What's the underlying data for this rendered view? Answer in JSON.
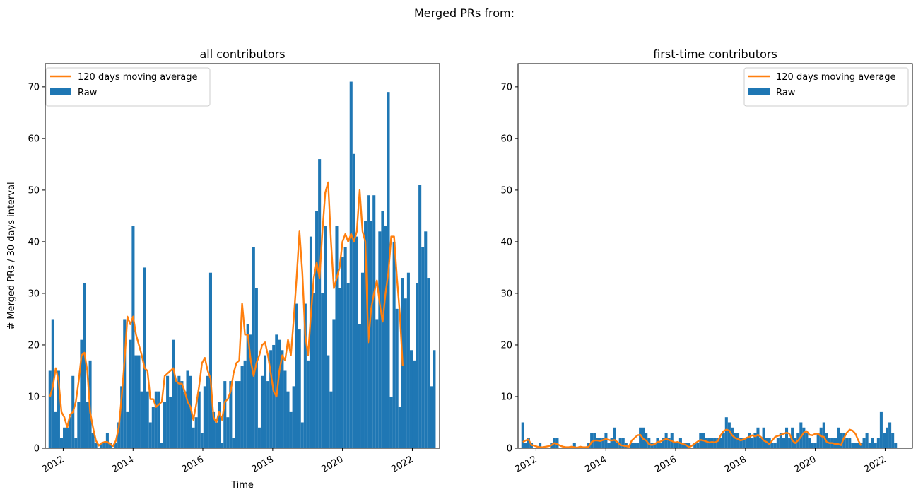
{
  "figure": {
    "suptitle": "Merged PRs from:"
  },
  "colors": {
    "bars": "#1f77b4",
    "line": "#ff7f0e"
  },
  "chart_data": [
    {
      "type": "bar",
      "title": "all contributors",
      "xlabel": "Time",
      "ylabel": "# Merged PRs / 30 days interval",
      "ylim": [
        0,
        74.5
      ],
      "yticks": [
        0,
        10,
        20,
        30,
        40,
        50,
        60,
        70
      ],
      "xticks": [
        "2012",
        "2014",
        "2016",
        "2018",
        "2020",
        "2022"
      ],
      "xlim": [
        "2011-06-27",
        "2022-10-13"
      ],
      "bin_days": 30,
      "x_start": "2011-08-01",
      "legend": {
        "position": "upper left",
        "entries": [
          "120 days moving average",
          "Raw"
        ]
      },
      "series": [
        {
          "name": "Raw",
          "kind": "bar",
          "values": [
            15,
            25,
            7,
            15,
            2,
            4,
            4,
            6,
            14,
            2,
            9,
            21,
            32,
            9,
            17,
            3,
            1,
            0,
            1,
            1,
            3,
            1,
            0,
            1,
            5,
            12,
            25,
            7,
            21,
            43,
            18,
            18,
            11,
            35,
            11,
            5,
            8,
            11,
            11,
            1,
            9,
            14,
            10,
            21,
            13,
            14,
            13,
            11,
            15,
            14,
            4,
            6,
            11,
            3,
            12,
            14,
            34,
            7,
            5,
            9,
            1,
            13,
            6,
            13,
            2,
            13,
            13,
            16,
            17,
            24,
            22,
            39,
            31,
            4,
            14,
            18,
            13,
            19,
            20,
            22,
            21,
            19,
            15,
            11,
            7,
            12,
            28,
            23,
            5,
            28,
            17,
            41,
            30,
            46,
            56,
            30,
            43,
            18,
            11,
            25,
            43,
            31,
            37,
            39,
            32,
            71,
            57,
            41,
            24,
            34,
            44,
            49,
            44,
            49,
            25,
            42,
            46,
            43,
            69,
            10,
            40,
            27,
            8,
            33,
            29,
            34,
            19,
            17,
            32,
            51,
            39,
            42,
            33,
            12,
            19
          ]
        },
        {
          "name": "120 days moving average",
          "kind": "line",
          "values": [
            10,
            12,
            15.5,
            13,
            7,
            6,
            4,
            6.5,
            7,
            9,
            13,
            18,
            18.5,
            15,
            7,
            4,
            1.5,
            0.5,
            1,
            1.2,
            1.2,
            0.8,
            0.4,
            1.5,
            4,
            10,
            17,
            25.5,
            24,
            25.5,
            22,
            20,
            18,
            15.5,
            15,
            9.5,
            9.5,
            8,
            8.5,
            9,
            14,
            14.5,
            15,
            15.5,
            13,
            12.5,
            12.5,
            11,
            9,
            8,
            5.5,
            8.5,
            12,
            16.5,
            17.5,
            15,
            13.5,
            6,
            5,
            7,
            5.5,
            9,
            9.5,
            11,
            14.5,
            16.5,
            17,
            28,
            22,
            22,
            17,
            14,
            16.5,
            18,
            20,
            20.5,
            18,
            14.5,
            11,
            10,
            15,
            18,
            17,
            21,
            18,
            25,
            33,
            42,
            34,
            22,
            18,
            26,
            33,
            36,
            33,
            42,
            49.5,
            51.5,
            40,
            31,
            33,
            35,
            40,
            41.5,
            40,
            41.5,
            40,
            42,
            50,
            42,
            40,
            20.5,
            27,
            30,
            32.5,
            28,
            24.5,
            30,
            34,
            41,
            41,
            33,
            26,
            16
          ]
        }
      ]
    },
    {
      "type": "bar",
      "title": "first-time contributors",
      "xlabel": "",
      "ylabel": "",
      "ylim": [
        0,
        74.5
      ],
      "yticks": [
        0,
        10,
        20,
        30,
        40,
        50,
        60,
        70
      ],
      "xticks": [
        "2012",
        "2014",
        "2016",
        "2018",
        "2020",
        "2022"
      ],
      "xlim": [
        "2011-06-27",
        "2022-10-13"
      ],
      "bin_days": 30,
      "x_start": "2011-08-01",
      "legend": {
        "position": "upper right",
        "entries": [
          "120 days moving average",
          "Raw"
        ]
      },
      "series": [
        {
          "name": "Raw",
          "kind": "bar",
          "values": [
            5,
            1,
            2,
            1,
            0,
            0,
            1,
            0,
            0,
            0,
            1,
            2,
            2,
            0,
            0,
            0,
            0,
            0,
            1,
            0,
            0,
            0,
            0,
            1,
            3,
            3,
            2,
            2,
            2,
            3,
            1,
            2,
            4,
            1,
            2,
            2,
            1,
            0,
            1,
            1,
            1,
            4,
            4,
            3,
            2,
            1,
            1,
            2,
            1,
            2,
            3,
            2,
            3,
            1,
            1,
            2,
            1,
            1,
            1,
            0,
            1,
            1,
            3,
            3,
            2,
            2,
            2,
            2,
            2,
            2,
            3,
            6,
            5,
            4,
            3,
            3,
            2,
            2,
            2,
            3,
            2,
            3,
            4,
            2,
            4,
            2,
            2,
            1,
            1,
            2,
            3,
            2,
            4,
            2,
            4,
            2,
            3,
            5,
            4,
            3,
            2,
            1,
            1,
            3,
            4,
            5,
            3,
            2,
            2,
            2,
            4,
            3,
            3,
            2,
            2,
            1,
            1,
            1,
            1,
            2,
            3,
            1,
            2,
            1,
            2,
            7,
            3,
            4,
            5,
            3,
            1,
            0,
            0,
            0,
            0
          ]
        },
        {
          "name": "120 days moving average",
          "kind": "line",
          "values": [
            1.2,
            1.5,
            1.7,
            0.6,
            0.5,
            0.3,
            0.2,
            0.2,
            0.3,
            0.4,
            0.6,
            1,
            0.8,
            0.5,
            0.3,
            0.2,
            0.2,
            0.3,
            0.2,
            0.1,
            0.3,
            0.2,
            0.2,
            0.3,
            1.2,
            1.5,
            1.5,
            1.4,
            1.6,
            1.8,
            1.6,
            1.5,
            1.6,
            1.2,
            0.6,
            0.5,
            0.4,
            0.3,
            1.5,
            2,
            2.5,
            2.6,
            1.8,
            1.5,
            0.8,
            0.6,
            0.8,
            1.2,
            1.3,
            1.6,
            1.8,
            1.6,
            1.4,
            1.1,
            1.2,
            1,
            0.8,
            0.6,
            0.2,
            0.5,
            0.9,
            1.3,
            1.6,
            1.5,
            1.3,
            1.1,
            1.2,
            1.1,
            1.4,
            2.5,
            3.3,
            3.6,
            3.4,
            2.5,
            2,
            1.8,
            1.5,
            1.7,
            2,
            2.2,
            2.5,
            2.3,
            2.6,
            2.2,
            1.5,
            1.2,
            0.8,
            1.5,
            2.2,
            2.4,
            2.6,
            2.8,
            3,
            2.8,
            1.5,
            1,
            1.5,
            2.2,
            3,
            3.3,
            2.6,
            2.5,
            2.8,
            2.8,
            2.3,
            2.2,
            1.2,
            1,
            1,
            0.8,
            0.8,
            0.6,
            2,
            3,
            3.6,
            3.4,
            2.8,
            1.5,
            0.5
          ]
        }
      ]
    }
  ]
}
